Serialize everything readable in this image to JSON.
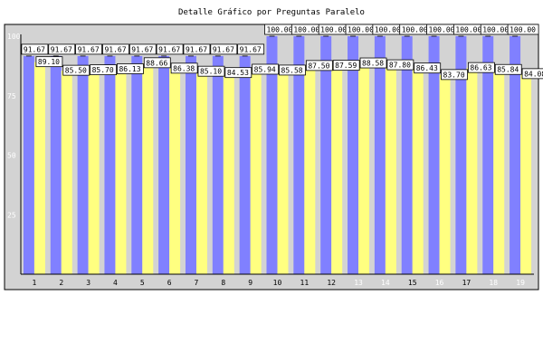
{
  "chart_data": {
    "type": "bar",
    "title": "Detalle Gráfico por Preguntas Paralelo",
    "categories": [
      "1",
      "2",
      "3",
      "4",
      "5",
      "6",
      "7",
      "8",
      "9",
      "10",
      "11",
      "12",
      "13",
      "14",
      "15",
      "16",
      "17",
      "18",
      "19"
    ],
    "series": [
      {
        "values": [
          91.67,
          91.67,
          91.67,
          91.67,
          91.67,
          91.67,
          91.67,
          91.67,
          91.67,
          100.0,
          100.0,
          100.0,
          100.0,
          100.0,
          100.0,
          100.0,
          100.0,
          100.0,
          100.0
        ],
        "labels": [
          "91.67",
          "91.67",
          "91.67",
          "91.67",
          "91.67",
          "91.67",
          "91.67",
          "91.67",
          "91.67",
          "100.00",
          "100.00",
          "100.00",
          "100.00",
          "100.00",
          "100.00",
          "100.00",
          "100.00",
          "100.00",
          "100.00"
        ]
      },
      {
        "values": [
          89.1,
          85.5,
          85.7,
          86.13,
          88.66,
          86.38,
          85.1,
          84.53,
          85.94,
          85.58,
          87.5,
          87.59,
          88.58,
          87.8,
          86.43,
          83.7,
          86.63,
          85.84,
          84.08
        ],
        "labels": [
          "89.10",
          "85.50",
          "85.70",
          "86.13",
          "88.66",
          "86.38",
          "85.10",
          "84.53",
          "85.94",
          "85.58",
          "87.50",
          "87.59",
          "88.58",
          "87.80",
          "86.43",
          "83.70",
          "86.63",
          "85.84",
          "84.08"
        ]
      }
    ],
    "yticks": [
      "25",
      "50",
      "75",
      "100"
    ],
    "ylim": [
      0,
      100
    ],
    "grid": false,
    "colors": {
      "series1": "#8080ff",
      "series2": "#ffff80",
      "plot_bg": "#d3d3d3",
      "label_bg": "#ffffff",
      "tick_text": "#ffffff",
      "category_text": "#000000"
    }
  }
}
